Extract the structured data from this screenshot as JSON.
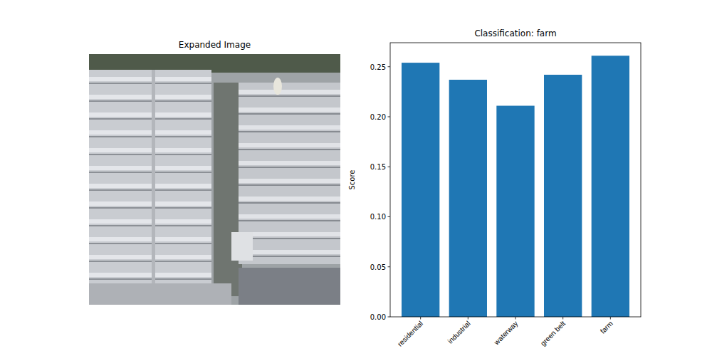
{
  "image_panel": {
    "title": "Expanded Image"
  },
  "chart_data": {
    "type": "bar",
    "title": "Classification: farm",
    "y_label": "Score",
    "categories": [
      "residential",
      "industrial",
      "waterway",
      "green belt",
      "farm"
    ],
    "values": [
      0.254,
      0.237,
      0.211,
      0.242,
      0.261
    ],
    "color": "#1f77b4",
    "ylim": [
      0,
      0.274
    ],
    "yticks": [
      {
        "value": 0,
        "label": "0.00"
      },
      {
        "value": 0.05,
        "label": "0.05"
      },
      {
        "value": 0.1,
        "label": "0.10"
      },
      {
        "value": 0.15,
        "label": "0.15"
      },
      {
        "value": 0.2,
        "label": "0.20"
      },
      {
        "value": 0.25,
        "label": "0.25"
      }
    ],
    "grid": false
  }
}
